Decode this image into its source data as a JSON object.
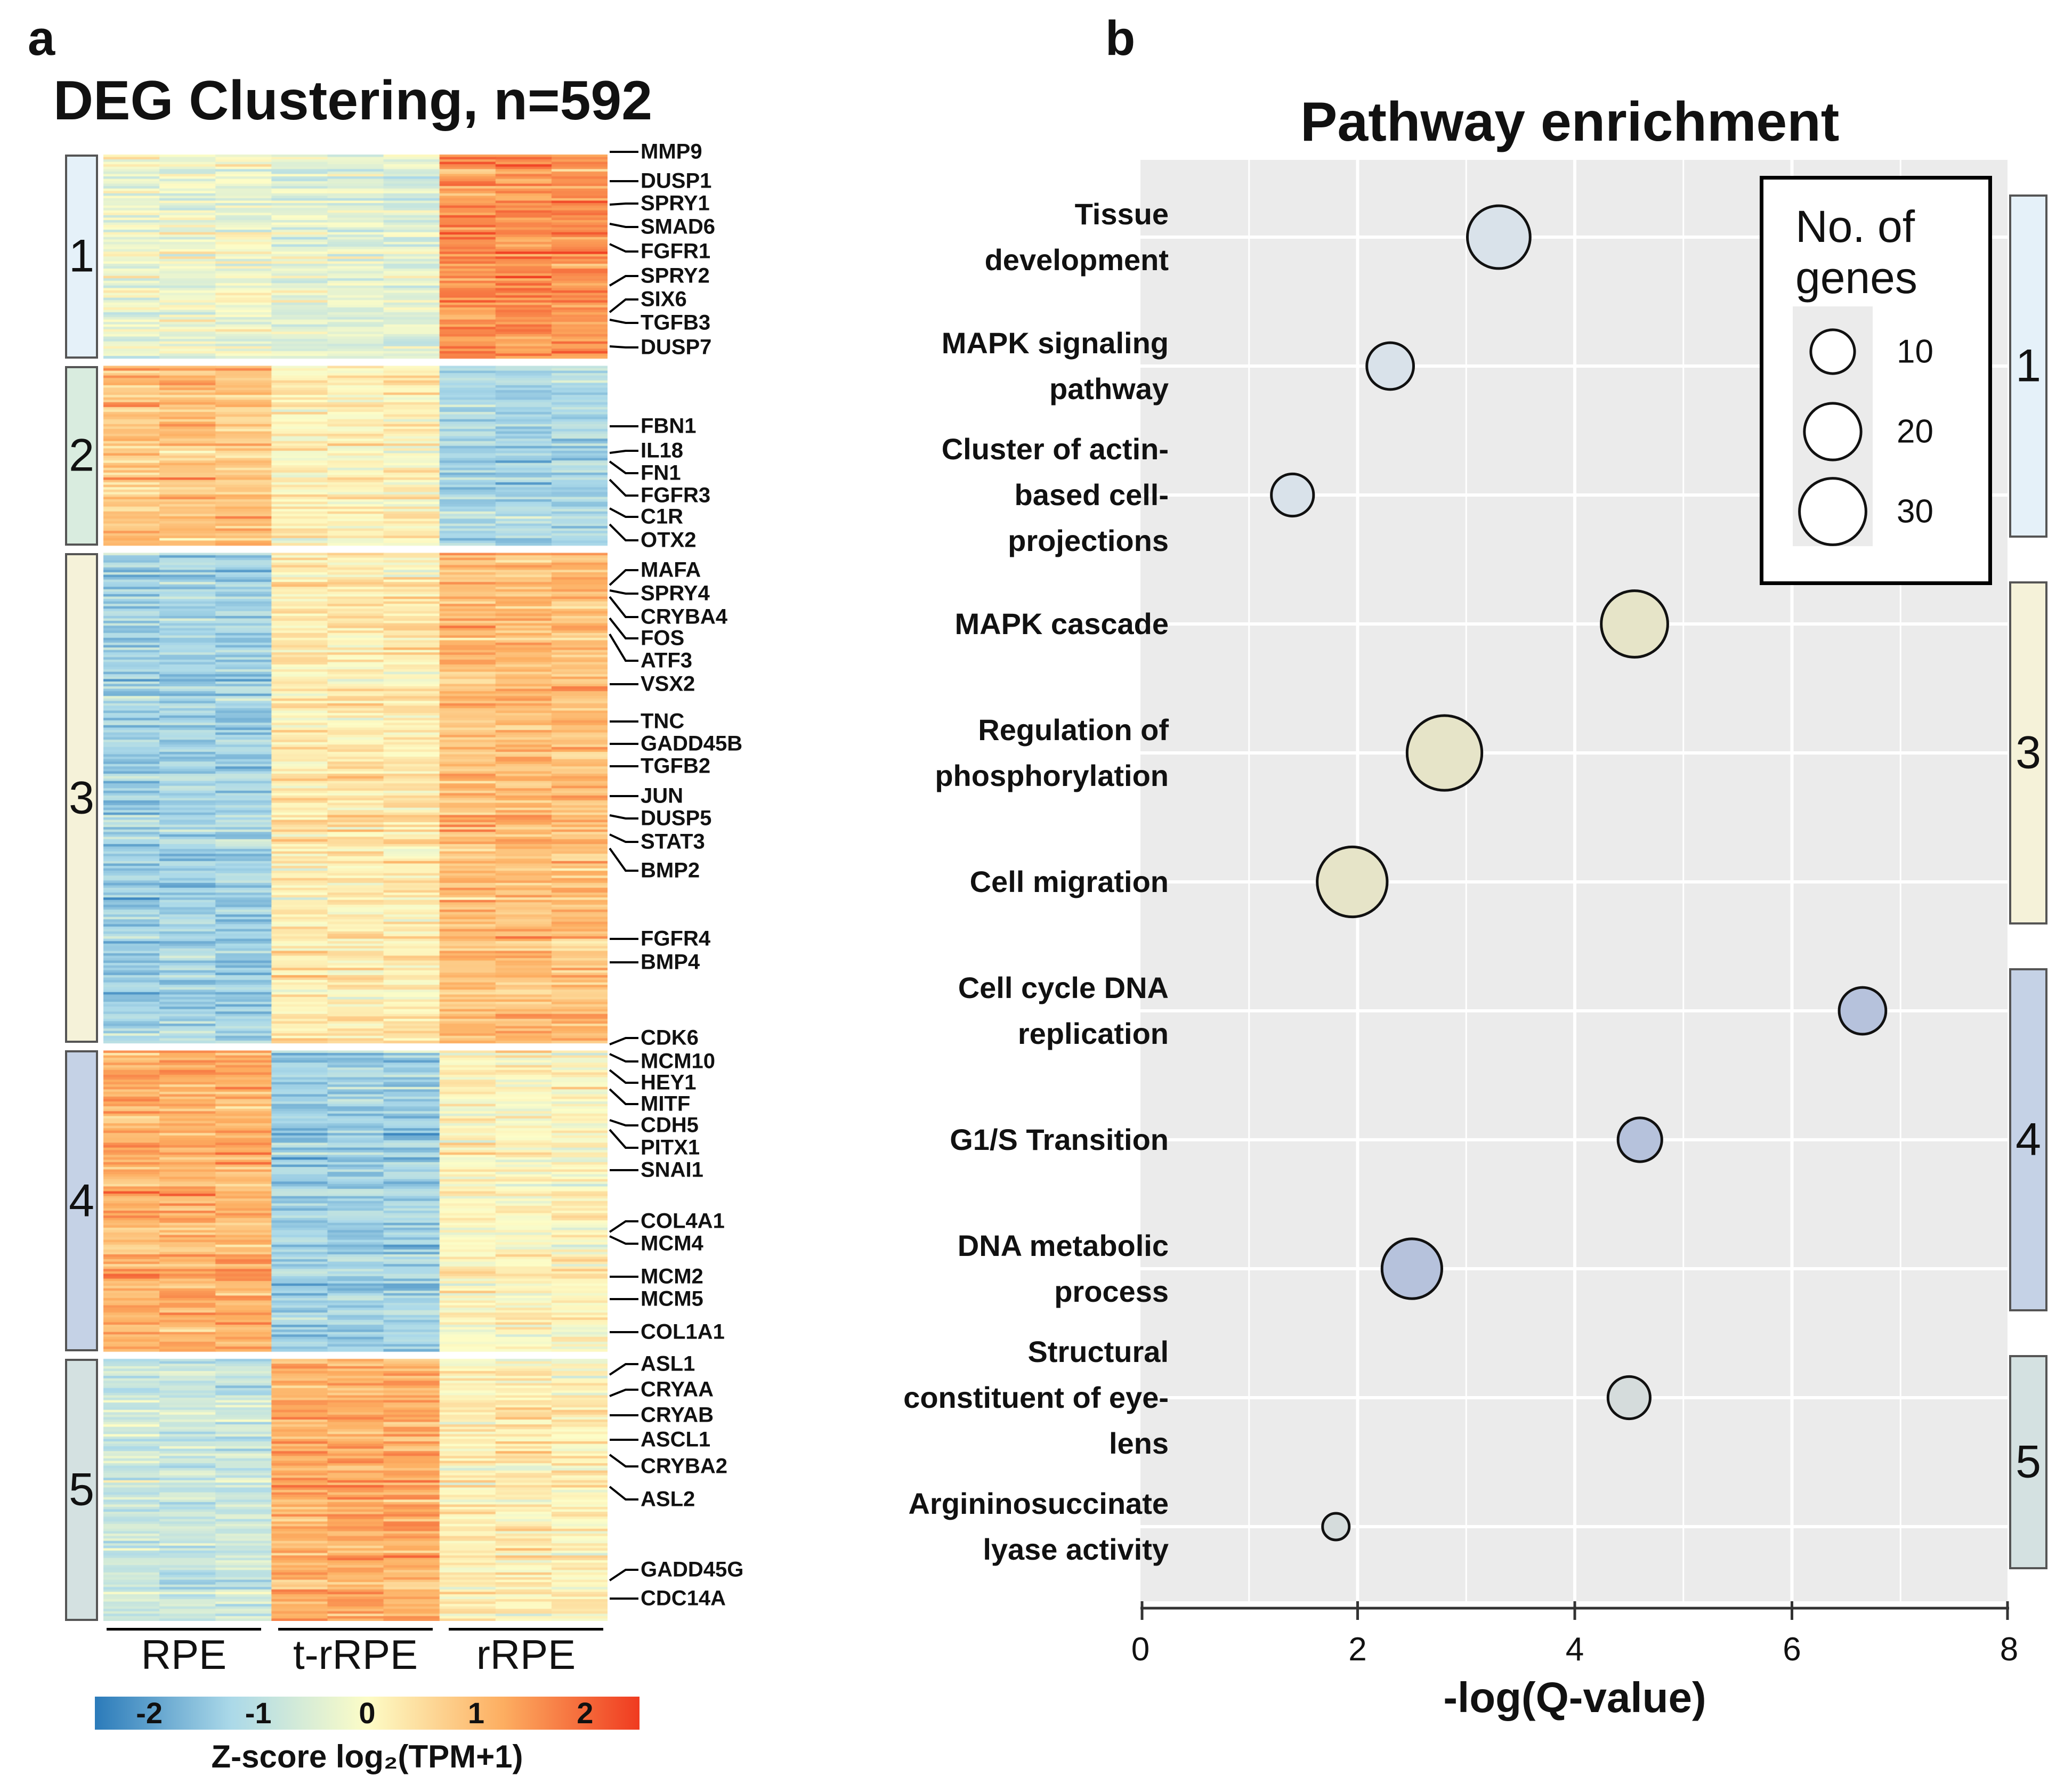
{
  "panels": {
    "a": "a",
    "b": "b"
  },
  "heatmap": {
    "title": "DEG Clustering, n=592",
    "clusters": [
      {
        "label": "1",
        "color": "#e5f1f9",
        "rows": 84
      },
      {
        "label": "2",
        "color": "#d9ecdf",
        "rows": 74
      },
      {
        "label": "3",
        "color": "#f5f2d9",
        "rows": 202
      },
      {
        "label": "4",
        "color": "#c5d2e6",
        "rows": 124
      },
      {
        "label": "5",
        "color": "#d4e1e1",
        "rows": 108
      }
    ],
    "samples": [
      {
        "name": "RPE"
      },
      {
        "name": "t-rRPE"
      },
      {
        "name": "rRPE"
      }
    ],
    "cluster_pattern": {
      "1": [
        -0.2,
        -0.4,
        1.6
      ],
      "2": [
        0.9,
        0.2,
        -1.2
      ],
      "3": [
        -1.3,
        0.3,
        1.0
      ],
      "4": [
        1.2,
        -1.3,
        0.1
      ],
      "5": [
        -0.8,
        1.2,
        0.2
      ]
    },
    "genes": [
      "MMP9",
      "DUSP1",
      "SPRY1",
      "SMAD6",
      "FGFR1",
      "SPRY2",
      "SIX6",
      "TGFB3",
      "DUSP7",
      "FBN1",
      "IL18",
      "FN1",
      "FGFR3",
      "C1R",
      "OTX2",
      "MAFA",
      "SPRY4",
      "CRYBA4",
      "FOS",
      "ATF3",
      "VSX2",
      "TNC",
      "GADD45B",
      "TGFB2",
      "JUN",
      "DUSP5",
      "STAT3",
      "BMP2",
      "FGFR4",
      "BMP4",
      "CDK6",
      "MCM10",
      "HEY1",
      "MITF",
      "CDH5",
      "PITX1",
      "SNAI1",
      "COL4A1",
      "MCM4",
      "MCM2",
      "MCM5",
      "COL1A1",
      "ASL1",
      "CRYAA",
      "CRYAB",
      "ASCL1",
      "CRYBA2",
      "ASL2",
      "GADD45G",
      "CDC14A"
    ],
    "colorbar": {
      "ticks": [
        "-2",
        "-1",
        "0",
        "1",
        "2"
      ],
      "tick_values": [
        -2,
        -1,
        0,
        1,
        2
      ],
      "range": [
        -2.5,
        2.5
      ],
      "label": "Z-score log₂(TPM+1)",
      "colors": [
        "#2b7bba",
        "#abd9e9",
        "#fdfdc7",
        "#fdae61",
        "#f03b20"
      ]
    }
  },
  "chart_data": {
    "type": "scatter",
    "title": "Pathway enrichment",
    "xlabel": "-log(Q-value)",
    "xlim": [
      0,
      8
    ],
    "xticks": [
      0,
      2,
      4,
      6,
      8
    ],
    "grid": true,
    "pathways": [
      {
        "label": [
          "Tissue",
          "development"
        ],
        "x": 3.3,
        "genes": 26,
        "cluster": "1"
      },
      {
        "label": [
          "MAPK signaling",
          "pathway"
        ],
        "x": 2.3,
        "genes": 12,
        "cluster": "1"
      },
      {
        "label": [
          "Cluster of actin-",
          "based cell-",
          "projections"
        ],
        "x": 1.4,
        "genes": 9,
        "cluster": "1"
      },
      {
        "label": [
          "MAPK cascade"
        ],
        "x": 4.55,
        "genes": 30,
        "cluster": "3"
      },
      {
        "label": [
          "Regulation of",
          "phosphorylation"
        ],
        "x": 2.8,
        "genes": 40,
        "cluster": "3"
      },
      {
        "label": [
          "Cell migration"
        ],
        "x": 1.95,
        "genes": 34,
        "cluster": "3"
      },
      {
        "label": [
          "Cell cycle DNA",
          "replication"
        ],
        "x": 6.65,
        "genes": 12,
        "cluster": "4"
      },
      {
        "label": [
          "G1/S Transition"
        ],
        "x": 4.6,
        "genes": 10,
        "cluster": "4"
      },
      {
        "label": [
          "DNA metabolic",
          "process"
        ],
        "x": 2.5,
        "genes": 23,
        "cluster": "4"
      },
      {
        "label": [
          "Structural",
          "constituent of eye-",
          "lens"
        ],
        "x": 4.5,
        "genes": 9,
        "cluster": "5"
      },
      {
        "label": [
          "Argininosuccinate",
          "lyase activity"
        ],
        "x": 1.8,
        "genes": 2,
        "cluster": "5"
      }
    ],
    "legend": {
      "title": [
        "No. of",
        "genes"
      ],
      "sizes": [
        10,
        20,
        30
      ],
      "placement": "top-right"
    },
    "cluster_strips": [
      {
        "label": "1",
        "color": "#e5f1f9",
        "first": 0,
        "last": 2
      },
      {
        "label": "3",
        "color": "#f5f2d9",
        "first": 3,
        "last": 5
      },
      {
        "label": "4",
        "color": "#c5d2e6",
        "first": 6,
        "last": 8
      },
      {
        "label": "5",
        "color": "#d4e1e1",
        "first": 9,
        "last": 10
      }
    ],
    "bubble_colors": {
      "1": "#d9e2ea",
      "3": "#e6e4c8",
      "4": "#b6c2dc",
      "5": "#d5dcdc"
    }
  }
}
